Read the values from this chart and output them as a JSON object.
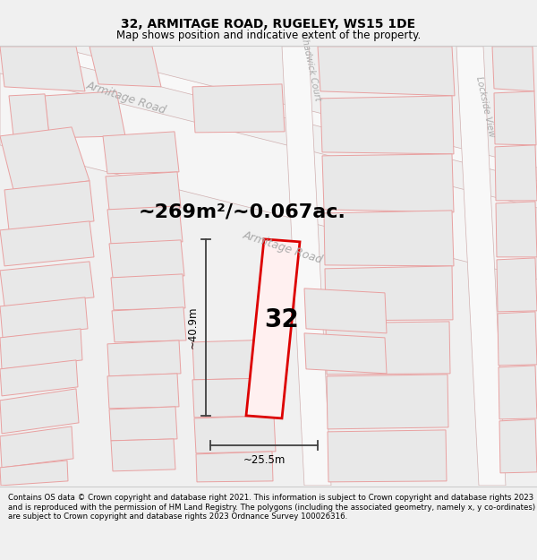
{
  "title": "32, ARMITAGE ROAD, RUGELEY, WS15 1DE",
  "subtitle": "Map shows position and indicative extent of the property.",
  "footer": "Contains OS data © Crown copyright and database right 2021. This information is subject to Crown copyright and database rights 2023 and is reproduced with the permission of HM Land Registry. The polygons (including the associated geometry, namely x, y co-ordinates) are subject to Crown copyright and database rights 2023 Ordnance Survey 100026316.",
  "area_label": "~269m²/~0.067ac.",
  "width_label": "~25.5m",
  "height_label": "~40.9m",
  "number_label": "32",
  "bg_color": "#f0f0f0",
  "map_bg": "#ffffff",
  "plot_color": "#dd0000",
  "plot_fill": "#fff0f0",
  "building_fill": "#e8e8e8",
  "building_edge": "#e8a0a0",
  "road_fill": "#f5f5f5",
  "road_edge": "#c8a0a0",
  "dim_line_color": "#404040",
  "label_color": "#aaaaaa",
  "title_fontsize": 10,
  "subtitle_fontsize": 8.5,
  "footer_fontsize": 6.2,
  "area_fontsize": 16,
  "number_fontsize": 20,
  "dim_fontsize": 8.5,
  "street_fontsize": 9
}
